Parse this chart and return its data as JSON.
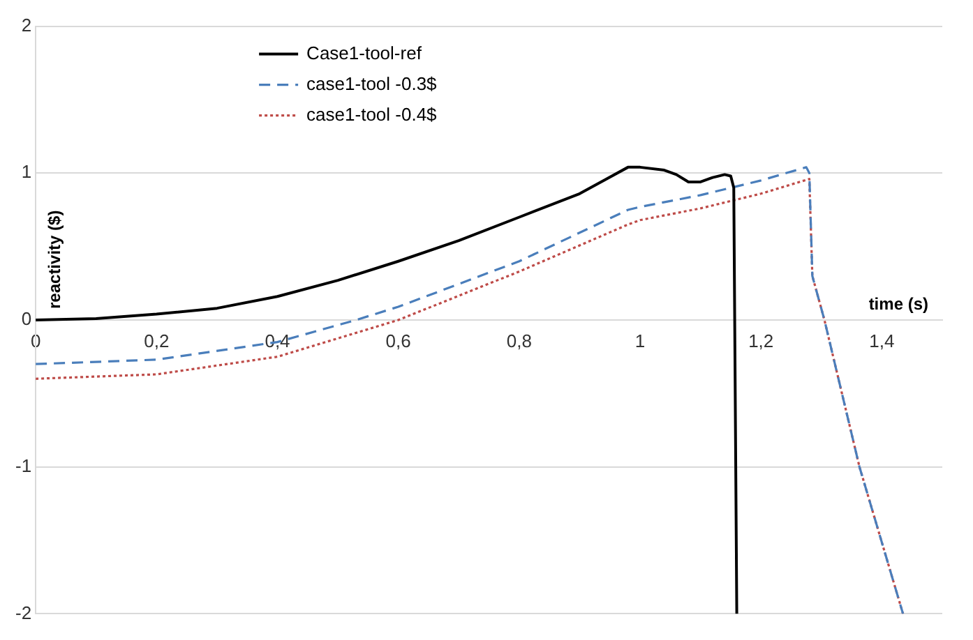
{
  "chart_data": {
    "type": "line",
    "xlabel": "time (s)",
    "ylabel": "reactivity ($)",
    "xlim": [
      0,
      1.5
    ],
    "ylim": [
      -2,
      2
    ],
    "xticks": [
      0,
      {
        "value": 0.2,
        "label": "0,2"
      },
      {
        "value": 0.4,
        "label": "0,4"
      },
      {
        "value": 0.6,
        "label": "0,6"
      },
      {
        "value": 0.8,
        "label": "0,8"
      },
      1,
      {
        "value": 1.2,
        "label": "1,2"
      },
      {
        "value": 1.4,
        "label": "1,4"
      }
    ],
    "yticks": [
      -2,
      -1,
      0,
      1,
      2
    ],
    "grid": "y",
    "legend": "top left",
    "marker": "none",
    "series": [
      {
        "name": "Case1-tool-ref",
        "color": "#000000",
        "line_style": "solid",
        "x": [
          0,
          0.1,
          0.2,
          0.3,
          0.4,
          0.5,
          0.6,
          0.7,
          0.8,
          0.9,
          0.98,
          1.0,
          1.04,
          1.06,
          1.08,
          1.1,
          1.12,
          1.14,
          1.15,
          1.155,
          1.16
        ],
        "values": [
          0,
          0.01,
          0.04,
          0.08,
          0.16,
          0.27,
          0.4,
          0.54,
          0.7,
          0.86,
          1.04,
          1.04,
          1.02,
          0.99,
          0.94,
          0.94,
          0.97,
          0.99,
          0.98,
          0.9,
          -2
        ]
      },
      {
        "name": "case1-tool -0.3$",
        "color": "#4a7ebb",
        "line_style": "dashed",
        "x": [
          0,
          0.2,
          0.4,
          0.53,
          0.6,
          0.8,
          0.98,
          1.0,
          1.1,
          1.2,
          1.275,
          1.28,
          1.285,
          1.305,
          1.363,
          1.435
        ],
        "values": [
          -0.3,
          -0.27,
          -0.15,
          0,
          0.09,
          0.4,
          0.75,
          0.77,
          0.85,
          0.95,
          1.04,
          1.0,
          0.3,
          0,
          -1,
          -2
        ]
      },
      {
        "name": "case1-tool -0.4$",
        "color": "#be4b48",
        "line_style": "dotted",
        "x": [
          0,
          0.2,
          0.4,
          0.6,
          0.8,
          0.98,
          1.0,
          1.1,
          1.2,
          1.28,
          1.285,
          1.305,
          1.363,
          1.435
        ],
        "values": [
          -0.4,
          -0.37,
          -0.25,
          0,
          0.33,
          0.65,
          0.68,
          0.76,
          0.86,
          0.96,
          0.3,
          0,
          -1,
          -2
        ]
      }
    ]
  }
}
